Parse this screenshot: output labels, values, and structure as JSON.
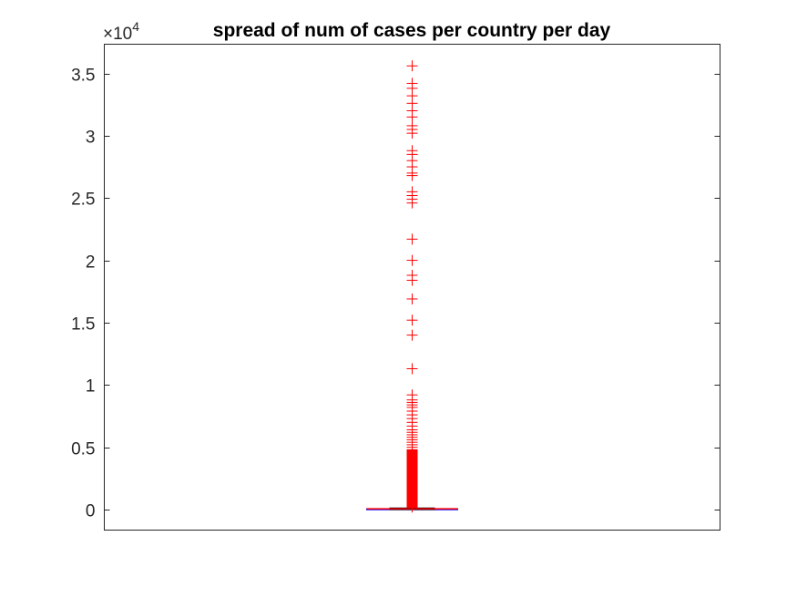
{
  "chart_data": {
    "type": "boxplot",
    "title": "spread of num of cases per country per day",
    "xlabel": "",
    "ylabel": "",
    "y_exponent_label": {
      "base": "×10",
      "exponent": "4"
    },
    "ylim": [
      -1600,
      37000
    ],
    "y_ticks": [
      0,
      5000,
      10000,
      15000,
      20000,
      25000,
      30000,
      35000
    ],
    "y_tick_labels": [
      "0",
      "0.5",
      "1",
      "1.5",
      "2",
      "2.5",
      "3",
      "3.5"
    ],
    "grid": false,
    "legend": "none",
    "color": "#ff0000",
    "box": {
      "q1": 0,
      "median": 30,
      "q3": 60,
      "whisker_low": 0,
      "whisker_high": 130
    },
    "outliers": [
      35600,
      34200,
      33800,
      33200,
      32600,
      32000,
      31500,
      30800,
      30500,
      30200,
      28800,
      28500,
      28000,
      27500,
      27000,
      26800,
      25500,
      25200,
      24900,
      24600,
      21700,
      20000,
      18800,
      18400,
      16900,
      15200,
      14000,
      11300,
      9200,
      8800,
      8600,
      8400,
      8200,
      7900,
      7600,
      7300,
      7000,
      6700,
      6400,
      6200,
      6000,
      5800,
      5600,
      5400,
      5200,
      5000,
      4800,
      4600,
      4400,
      4200,
      4000,
      3800,
      3600,
      3400,
      3200,
      3000,
      2800,
      2600,
      2400,
      2200,
      2000,
      1800,
      1600,
      1400,
      1200,
      1000,
      800,
      600,
      400,
      300,
      200
    ]
  }
}
